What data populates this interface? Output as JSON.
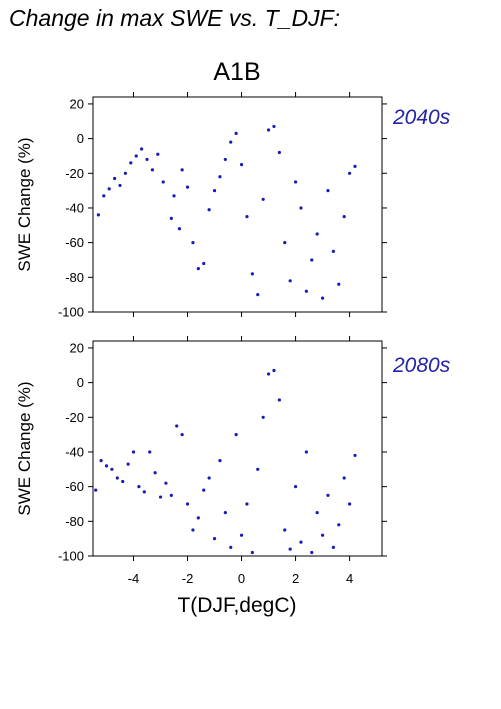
{
  "figure": {
    "title": "Change in max SWE vs. T_DJF:",
    "scenario": "A1B",
    "xlabel": "T(DJF,degC)",
    "point_color": "#1a1ab8",
    "label_color": "#2222aa"
  },
  "chart_data": [
    {
      "type": "scatter",
      "period_label": "2040s",
      "ylabel": "SWE Change (%)",
      "xlim": [
        -5.5,
        5.2
      ],
      "ylim": [
        -100,
        24
      ],
      "xticks": [
        -4,
        -2,
        0,
        2,
        4
      ],
      "yticks": [
        20,
        0,
        -20,
        -40,
        -60,
        -80,
        -100
      ],
      "show_xtick_labels": false,
      "grid": false,
      "points": [
        [
          -5.3,
          -44
        ],
        [
          -5.1,
          -33
        ],
        [
          -4.9,
          -29
        ],
        [
          -4.7,
          -23
        ],
        [
          -4.5,
          -27
        ],
        [
          -4.3,
          -20
        ],
        [
          -4.1,
          -14
        ],
        [
          -3.9,
          -10
        ],
        [
          -3.7,
          -6
        ],
        [
          -3.5,
          -12
        ],
        [
          -3.3,
          -18
        ],
        [
          -3.1,
          -9
        ],
        [
          -2.9,
          -25
        ],
        [
          -2.6,
          -46
        ],
        [
          -2.5,
          -33
        ],
        [
          -2.3,
          -52
        ],
        [
          -2.2,
          -18
        ],
        [
          -2.0,
          -28
        ],
        [
          -1.8,
          -60
        ],
        [
          -1.6,
          -75
        ],
        [
          -1.4,
          -72
        ],
        [
          -1.2,
          -41
        ],
        [
          -1.0,
          -30
        ],
        [
          -0.8,
          -22
        ],
        [
          -0.6,
          -12
        ],
        [
          -0.4,
          -2
        ],
        [
          -0.2,
          3
        ],
        [
          0.0,
          -15
        ],
        [
          0.2,
          -45
        ],
        [
          0.4,
          -78
        ],
        [
          0.6,
          -90
        ],
        [
          0.8,
          -35
        ],
        [
          1.0,
          5
        ],
        [
          1.2,
          7
        ],
        [
          1.4,
          -8
        ],
        [
          1.6,
          -60
        ],
        [
          1.8,
          -82
        ],
        [
          2.0,
          -25
        ],
        [
          2.2,
          -40
        ],
        [
          2.4,
          -88
        ],
        [
          2.6,
          -70
        ],
        [
          2.8,
          -55
        ],
        [
          3.0,
          -92
        ],
        [
          3.2,
          -30
        ],
        [
          3.4,
          -65
        ],
        [
          3.6,
          -84
        ],
        [
          3.8,
          -45
        ],
        [
          4.0,
          -20
        ],
        [
          4.2,
          -16
        ]
      ]
    },
    {
      "type": "scatter",
      "period_label": "2080s",
      "ylabel": "SWE Change (%)",
      "xlim": [
        -5.5,
        5.2
      ],
      "ylim": [
        -100,
        24
      ],
      "xticks": [
        -4,
        -2,
        0,
        2,
        4
      ],
      "yticks": [
        20,
        0,
        -20,
        -40,
        -60,
        -80,
        -100
      ],
      "show_xtick_labels": true,
      "grid": false,
      "points": [
        [
          -5.4,
          -62
        ],
        [
          -5.2,
          -45
        ],
        [
          -5.0,
          -48
        ],
        [
          -4.8,
          -50
        ],
        [
          -4.6,
          -55
        ],
        [
          -4.4,
          -57
        ],
        [
          -4.2,
          -47
        ],
        [
          -4.0,
          -40
        ],
        [
          -3.8,
          -60
        ],
        [
          -3.6,
          -63
        ],
        [
          -3.4,
          -40
        ],
        [
          -3.2,
          -52
        ],
        [
          -3.0,
          -66
        ],
        [
          -2.8,
          -58
        ],
        [
          -2.6,
          -65
        ],
        [
          -2.4,
          -25
        ],
        [
          -2.2,
          -30
        ],
        [
          -2.0,
          -70
        ],
        [
          -1.8,
          -85
        ],
        [
          -1.6,
          -78
        ],
        [
          -1.4,
          -62
        ],
        [
          -1.2,
          -55
        ],
        [
          -1.0,
          -90
        ],
        [
          -0.8,
          -45
        ],
        [
          -0.6,
          -75
        ],
        [
          -0.4,
          -95
        ],
        [
          -0.2,
          -30
        ],
        [
          0.0,
          -88
        ],
        [
          0.2,
          -70
        ],
        [
          0.4,
          -98
        ],
        [
          0.6,
          -50
        ],
        [
          0.8,
          -20
        ],
        [
          1.0,
          5
        ],
        [
          1.2,
          7
        ],
        [
          1.4,
          -10
        ],
        [
          1.6,
          -85
        ],
        [
          1.8,
          -96
        ],
        [
          2.0,
          -60
        ],
        [
          2.2,
          -92
        ],
        [
          2.4,
          -40
        ],
        [
          2.6,
          -98
        ],
        [
          2.8,
          -75
        ],
        [
          3.0,
          -88
        ],
        [
          3.2,
          -65
        ],
        [
          3.4,
          -95
        ],
        [
          3.6,
          -82
        ],
        [
          3.8,
          -55
        ],
        [
          4.0,
          -70
        ],
        [
          4.2,
          -42
        ]
      ]
    }
  ]
}
